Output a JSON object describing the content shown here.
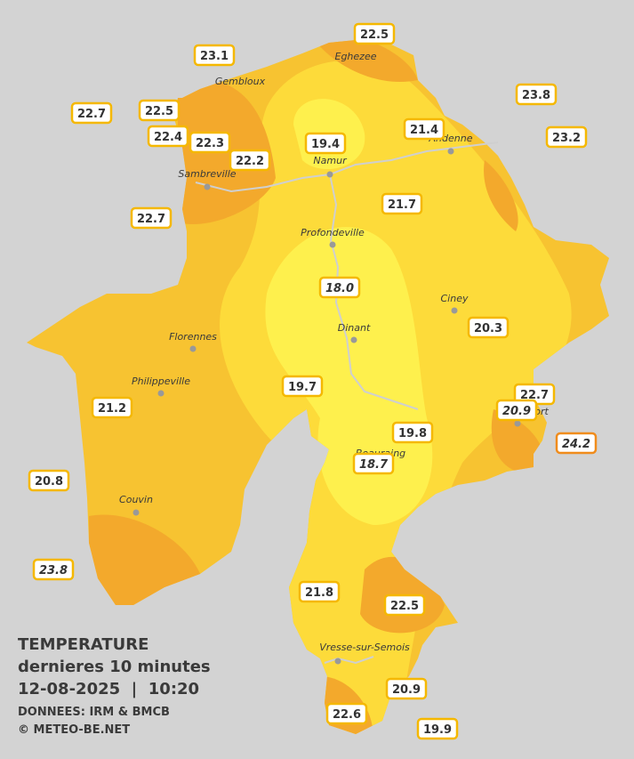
{
  "legend": {
    "title": "TEMPERATURE",
    "subtitle": "dernieres 10 minutes",
    "datetime": "12-08-2025  |  10:20",
    "source": "DONNEES: IRM & BMCB",
    "credit": "© METEO-BE.NET"
  },
  "cities": [
    "Eghezee",
    "Gembloux",
    "Andenne",
    "Namur",
    "Sambreville",
    "Profondeville",
    "Ciney",
    "Florennes",
    "Dinant",
    "Philippeville",
    "Rochefort",
    "Beauraing",
    "Couvin",
    "Vresse-sur-Semois"
  ],
  "stations": [
    {
      "label": "22.5"
    },
    {
      "label": "23.1"
    },
    {
      "label": "23.8"
    },
    {
      "label": "22.7"
    },
    {
      "label": "22.5"
    },
    {
      "label": "21.4"
    },
    {
      "label": "23.2"
    },
    {
      "label": "22.4"
    },
    {
      "label": "22.3"
    },
    {
      "label": "19.4"
    },
    {
      "label": "22.2"
    },
    {
      "label": "21.7"
    },
    {
      "label": "22.7"
    },
    {
      "label": "18.0",
      "italic": true
    },
    {
      "label": "20.3"
    },
    {
      "label": "19.7"
    },
    {
      "label": "22.7"
    },
    {
      "label": "20.9",
      "italic": true
    },
    {
      "label": "21.2"
    },
    {
      "label": "24.2",
      "italic": true,
      "border": "#f08c1c"
    },
    {
      "label": "19.8"
    },
    {
      "label": "18.7",
      "italic": true
    },
    {
      "label": "20.8"
    },
    {
      "label": "23.8",
      "italic": true
    },
    {
      "label": "21.8"
    },
    {
      "label": "22.5"
    },
    {
      "label": "20.9"
    },
    {
      "label": "22.6"
    },
    {
      "label": "19.9"
    }
  ],
  "label_border": "#f5b800"
}
